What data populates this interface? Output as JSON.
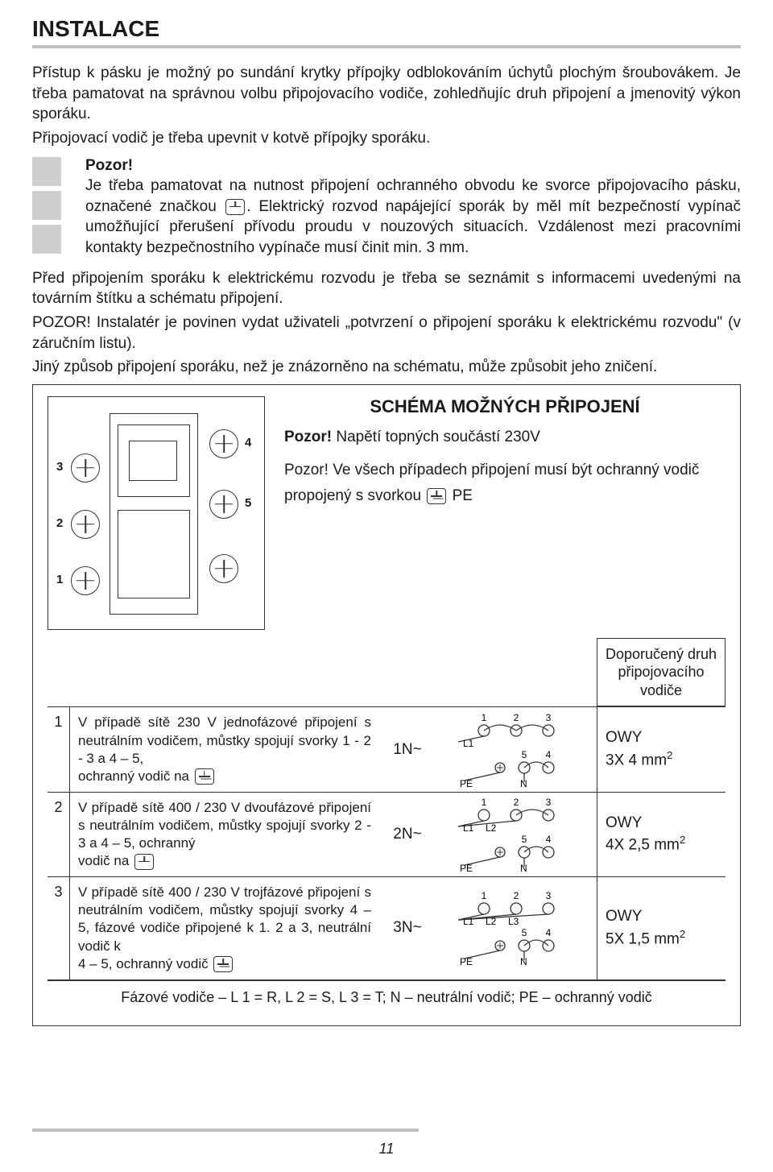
{
  "heading": "INSTALACE",
  "intro1": "Přístup k pásku je možný po sundání krytky přípojky odblokováním úchytů plochým šroubovákem. Je třeba pamatovat na správnou volbu připojovacího vodiče, zohledňujíc druh připojení a jmenovitý výkon sporáku.",
  "intro2": "Připojovací vodič je třeba upevnit v kotvě přípojky sporáku.",
  "warn_title": "Pozor!",
  "warn_text1": "Je třeba pamatovat na nutnost připojení ochranného obvodu ke svorce připojovacího pásku, označené značkou ",
  "warn_text2": ". Elektrický rozvod napájející sporák by měl mít bezpečností vypínač umožňující přerušení přívodu proudu v nouzových situacích. Vzdálenost mezi pracovními kontakty bezpečnostního vypínače musí činit min. 3 mm.",
  "para2a": "Před připojením sporáku k elektrickému rozvodu je třeba se seznámit  s informacemi uvedenými na továrním štítku a schématu připojení.",
  "para2b": "POZOR! Instalatér je povinen vydat uživateli „potvrzení o připojení sporáku k elektrickému rozvodu\" (v záručním listu).",
  "para2c": "Jiný způsob připojení sporáku, než je znázorněno na schématu, může způsobit jeho zničení.",
  "schema_title": "SCHÉMA MOŽNÝCH PŘIPOJENÍ",
  "schema_sub_bold": "Pozor!",
  "schema_sub_rest": " Napětí topných součástí 230V",
  "schema_note1": "Pozor! Ve všech případech připojení musí být ochranný vodič propojený s svorkou ",
  "schema_note2": " PE",
  "cable_heading": "Doporučený druh připojovacího vodiče",
  "rows": [
    {
      "num": "1",
      "desc1": "V případě sítě 230 V jednofázové připojení s neutrálním vodičem, můstky spojují svorky 1 - 2 - 3  a  4 – 5,",
      "desc2": "ochranný vodič na ",
      "code": "1N~",
      "cable1": "OWY",
      "cable2": "3X 4 mm",
      "phase_lines": [
        "L1"
      ],
      "phase_bridge_full": true
    },
    {
      "num": "2",
      "desc1": "V případě sítě 400 / 230 V dvoufázové připojení s neutrálním vodičem, můstky spojují svorky  2 - 3  a  4 – 5, ochranný",
      "desc2": "vodič na ",
      "code": "2N~",
      "cable1": "OWY",
      "cable2": "4X 2,5 mm",
      "phase_lines": [
        "L1",
        "L2"
      ]
    },
    {
      "num": "3",
      "desc1": "V případě sítě 400 / 230 V trojfázové připojení s neutrálním vodičem, můstky spojují svorky  4 – 5, fázové vodiče připojené k 1. 2 a 3, neutrální vodič k",
      "desc2": "4 – 5, ochranný vodič ",
      "code": "3N~",
      "cable1": "OWY",
      "cable2": "5X 1,5 mm",
      "phase_lines": [
        "L1",
        "L2",
        "L3"
      ]
    }
  ],
  "footer_legend": "Fázové vodiče – L 1 = R, L 2 = S, L 3 = T;  N – neutrální vodič;  PE – ochranný vodič",
  "page_number": "11",
  "terminal_labels": {
    "t1": "1",
    "t2": "2",
    "t3": "3",
    "t4": "4",
    "t5": "5"
  },
  "colors": {
    "text": "#1a1a1a",
    "rule": "#c0c0c0",
    "border": "#333333"
  }
}
